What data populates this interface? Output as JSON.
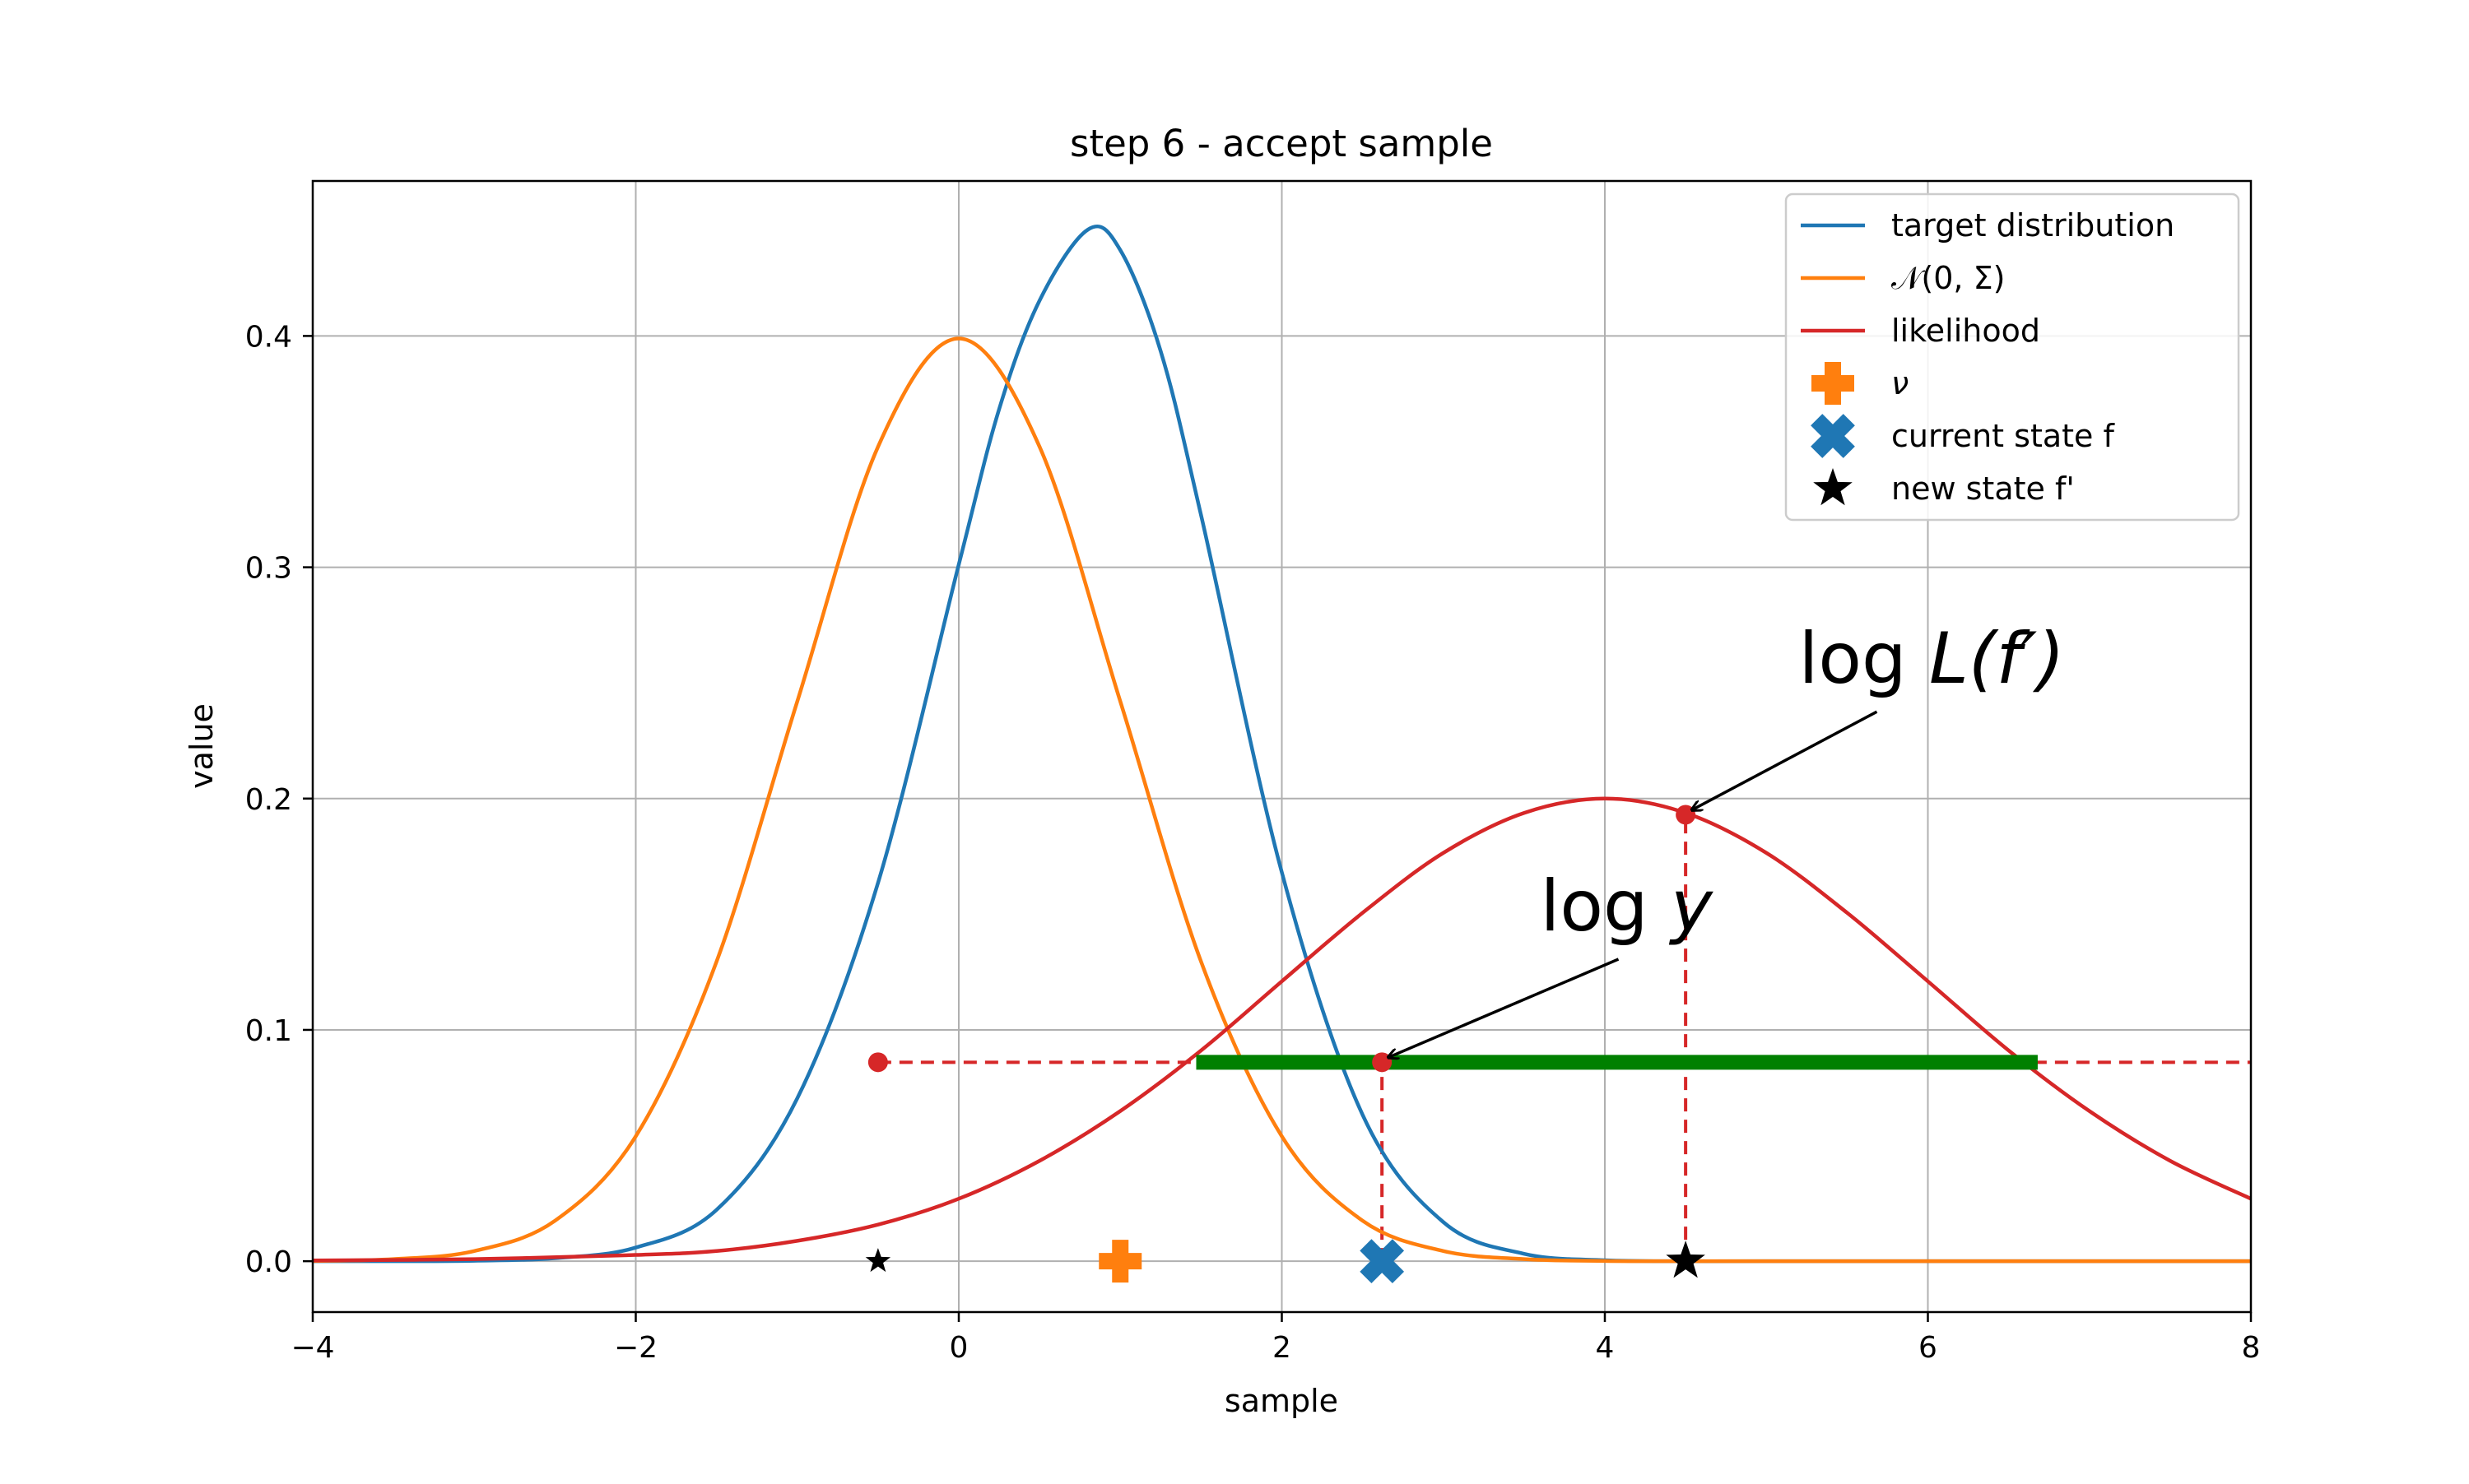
{
  "chart_data": {
    "type": "line",
    "title": "step 6 - accept sample",
    "xlabel": "sample",
    "ylabel": "value",
    "xlim": [
      -4,
      8
    ],
    "ylim": [
      -0.022,
      0.467
    ],
    "xticks": [
      -4,
      -2,
      0,
      2,
      4,
      6,
      8
    ],
    "xtick_labels": [
      "−4",
      "−2",
      "0",
      "2",
      "4",
      "6",
      "8"
    ],
    "yticks": [
      0.0,
      0.1,
      0.2,
      0.3,
      0.4
    ],
    "ytick_labels": [
      "0.0",
      "0.1",
      "0.2",
      "0.3",
      "0.4"
    ],
    "grid": true,
    "legend_position": "top-right",
    "series": [
      {
        "name": "target distribution",
        "kind": "line",
        "color": "#1f77b4",
        "x": [
          -4,
          -3.5,
          -3,
          -2.5,
          -2,
          -1.5,
          -1,
          -0.5,
          0,
          0.25,
          0.5,
          0.8,
          1,
          1.25,
          1.5,
          2,
          2.5,
          3,
          3.5,
          4,
          4.5,
          5,
          6,
          7,
          8
        ],
        "y": [
          0.0,
          0.0,
          0.0002,
          0.0013,
          0.0059,
          0.0222,
          0.0704,
          0.1636,
          0.3012,
          0.3684,
          0.4153,
          0.446,
          0.4371,
          0.3934,
          0.3225,
          0.1681,
          0.0633,
          0.0169,
          0.0032,
          0.0004,
          0.0,
          0.0,
          0.0,
          0.0,
          0.0
        ]
      },
      {
        "name": "𝒩(0, Σ)",
        "kind": "line",
        "color": "#ff7f0e",
        "x": [
          -4,
          -3.5,
          -3,
          -2.5,
          -2,
          -1.5,
          -1,
          -0.5,
          0,
          0.5,
          1,
          1.5,
          2,
          2.5,
          3,
          3.5,
          4,
          4.5,
          5,
          6,
          7,
          8
        ],
        "y": [
          0.0001,
          0.0009,
          0.0044,
          0.0175,
          0.054,
          0.1295,
          0.242,
          0.3521,
          0.3989,
          0.3521,
          0.242,
          0.1295,
          0.054,
          0.0175,
          0.0044,
          0.0009,
          0.0001,
          0.0,
          0.0,
          0.0,
          0.0,
          0.0
        ]
      },
      {
        "name": "likelihood",
        "kind": "line",
        "color": "#d62728",
        "x": [
          -4,
          -3,
          -2,
          -1.5,
          -1,
          -0.5,
          0,
          0.5,
          1,
          1.5,
          2,
          2.5,
          3,
          3.5,
          4,
          4.5,
          5,
          5.5,
          6,
          6.5,
          7,
          7.5,
          8
        ],
        "y": [
          0.0003,
          0.0009,
          0.0027,
          0.0044,
          0.0088,
          0.0158,
          0.027,
          0.0434,
          0.0649,
          0.0911,
          0.121,
          0.1506,
          0.1765,
          0.1938,
          0.2,
          0.1938,
          0.1765,
          0.1506,
          0.121,
          0.0911,
          0.0649,
          0.0434,
          0.027
        ]
      }
    ],
    "markers": [
      {
        "name": "ν",
        "shape": "plus",
        "color": "#ff7f0e",
        "x": 1.0,
        "y": 0.0
      },
      {
        "name": "current state f",
        "shape": "x",
        "color": "#1f77b4",
        "x": 2.62,
        "y": 0.0
      },
      {
        "name": "new state f'",
        "shape": "star",
        "color": "#000000",
        "x": 4.5,
        "y": 0.0
      },
      {
        "name": "",
        "shape": "small-star",
        "color": "#000000",
        "x": -0.5,
        "y": 0.0
      }
    ],
    "points": [
      {
        "color": "#d62728",
        "x": -0.5,
        "y": 0.086
      },
      {
        "color": "#d62728",
        "x": 2.62,
        "y": 0.086
      },
      {
        "color": "#d62728",
        "x": 4.5,
        "y": 0.193
      }
    ],
    "dashed_lines": [
      {
        "color": "#d62728",
        "x": [
          -0.5,
          8
        ],
        "y": [
          0.086,
          0.086
        ]
      },
      {
        "color": "#d62728",
        "x": [
          2.62,
          2.62
        ],
        "y": [
          0.0,
          0.086
        ]
      },
      {
        "color": "#d62728",
        "x": [
          4.5,
          4.5
        ],
        "y": [
          0.0,
          0.193
        ]
      }
    ],
    "bracket": {
      "color": "#008000",
      "x": [
        1.47,
        6.68
      ],
      "y": 0.086
    },
    "annotations": [
      {
        "text_prefix": "log",
        "text_italic": "L",
        "text_suffix": "(f′)",
        "x": 5.2,
        "y": 0.25,
        "arrow_to": [
          4.5,
          0.193
        ]
      },
      {
        "text_prefix": "log",
        "text_italic": "y",
        "text_suffix": "",
        "x": 3.6,
        "y": 0.143,
        "arrow_to": [
          2.62,
          0.086
        ]
      }
    ]
  }
}
